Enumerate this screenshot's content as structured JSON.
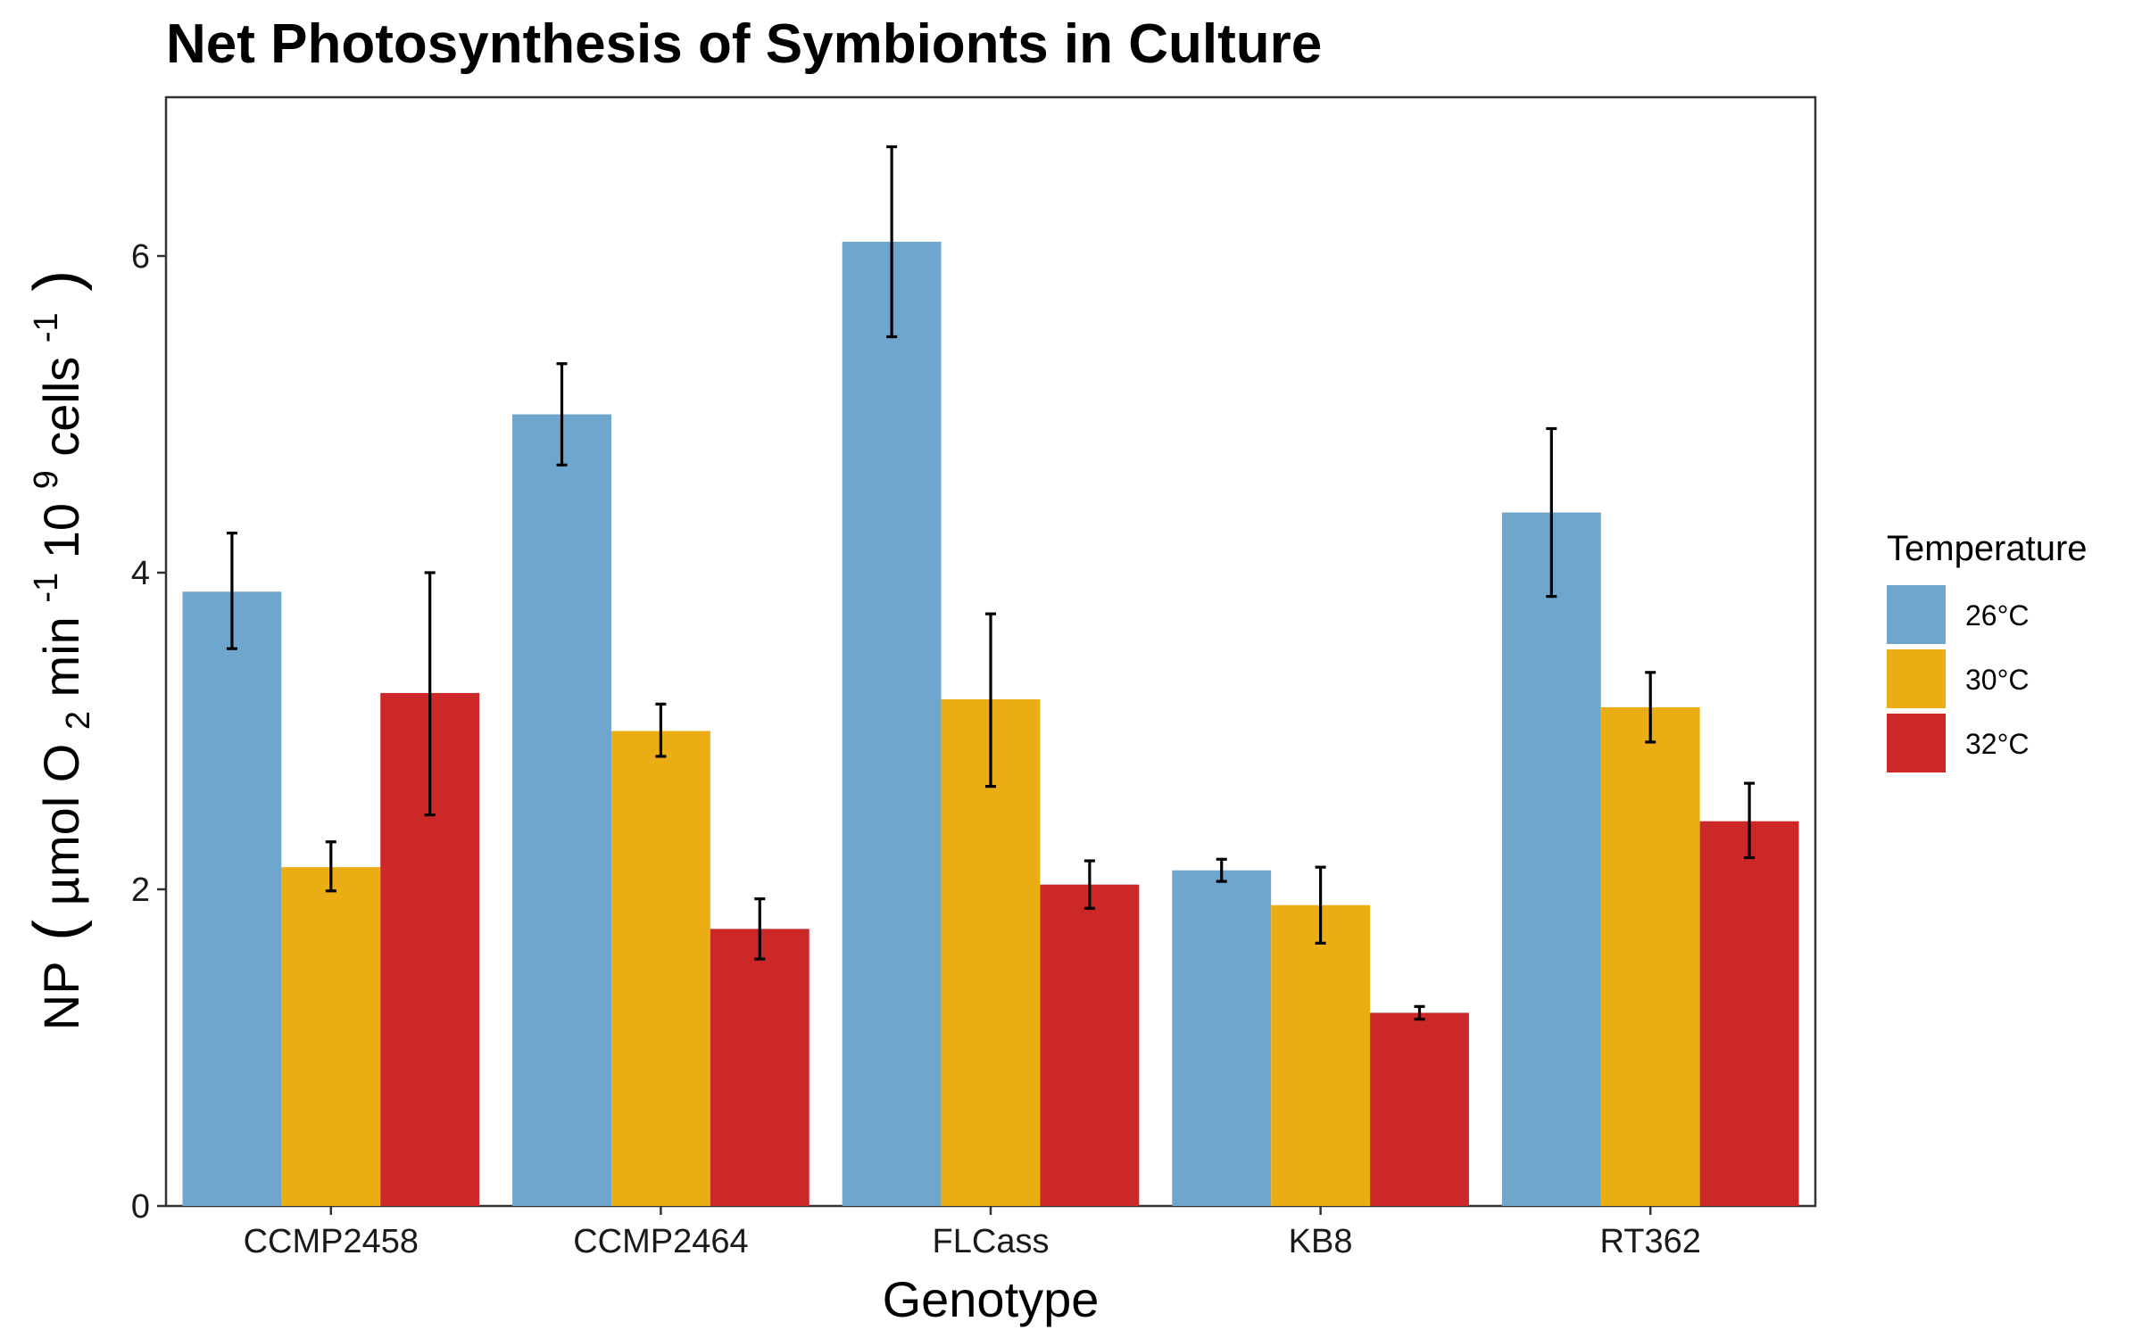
{
  "chart_data": {
    "type": "bar",
    "title": "Net Photosynthesis of Symbionts in Culture",
    "xlabel": "Genotype",
    "ylabel": {
      "prefix": "NP",
      "open_paren": "(",
      "text1": "µmol O",
      "sub": "2",
      "text2": " min",
      "sup1": "-1",
      "text3": " 10",
      "sup2": "9",
      "text4": " cells",
      "sup3": "-1",
      "close_paren": ")"
    },
    "ylim": [
      0,
      7
    ],
    "yticks": [
      0,
      2,
      4,
      6
    ],
    "ytick_labels": [
      "0",
      "2",
      "4",
      "6"
    ],
    "grid": false,
    "legend": {
      "title": "Temperature",
      "position": "right"
    },
    "categories": [
      "CCMP2458",
      "CCMP2464",
      "FLCass",
      "KB8",
      "RT362"
    ],
    "series": [
      {
        "name": "26°C",
        "color": "#6fa6cd",
        "values": [
          3.88,
          5.0,
          6.09,
          2.12,
          4.38
        ],
        "err_low": [
          3.52,
          4.68,
          5.49,
          2.05,
          3.85
        ],
        "err_high": [
          4.25,
          5.32,
          6.69,
          2.19,
          4.91
        ]
      },
      {
        "name": "30°C",
        "color": "#eaad14",
        "values": [
          2.14,
          3.0,
          3.2,
          1.9,
          3.15
        ],
        "err_low": [
          1.99,
          2.84,
          2.65,
          1.66,
          2.93
        ],
        "err_high": [
          2.3,
          3.17,
          3.74,
          2.14,
          3.37
        ]
      },
      {
        "name": "32°C",
        "color": "#cc2828",
        "values": [
          3.24,
          1.75,
          2.03,
          1.22,
          2.43
        ],
        "err_low": [
          2.47,
          1.56,
          1.88,
          1.18,
          2.2
        ],
        "err_high": [
          4.0,
          1.94,
          2.18,
          1.26,
          2.67
        ]
      }
    ]
  }
}
